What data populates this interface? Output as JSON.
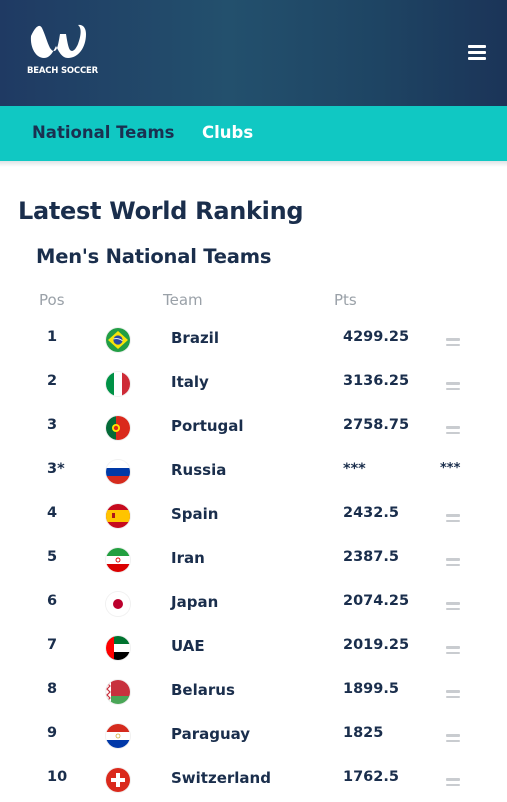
{
  "header": {
    "logo_text": "BEACH SOCCER",
    "menu_icon": "hamburger-menu-icon"
  },
  "tabs": [
    {
      "label": "National Teams",
      "active": true
    },
    {
      "label": "Clubs",
      "active": false
    }
  ],
  "page": {
    "title": "Latest World Ranking",
    "section": "Men's National Teams",
    "columns": {
      "pos": "Pos",
      "team": "Team",
      "pts": "Pts"
    }
  },
  "rankings": [
    {
      "pos": "1",
      "team": "Brazil",
      "pts": "4299.25",
      "flag": "brazil-flag-icon",
      "trend": "unchanged-icon"
    },
    {
      "pos": "2",
      "team": "Italy",
      "pts": "3136.25",
      "flag": "italy-flag-icon",
      "trend": "unchanged-icon"
    },
    {
      "pos": "3",
      "team": "Portugal",
      "pts": "2758.75",
      "flag": "portugal-flag-icon",
      "trend": "unchanged-icon"
    },
    {
      "pos": "3*",
      "team": "Russia",
      "pts": "***",
      "flag": "russia-flag-icon",
      "trend_text": "***"
    },
    {
      "pos": "4",
      "team": "Spain",
      "pts": "2432.5",
      "flag": "spain-flag-icon",
      "trend": "unchanged-icon"
    },
    {
      "pos": "5",
      "team": "Iran",
      "pts": "2387.5",
      "flag": "iran-flag-icon",
      "trend": "unchanged-icon"
    },
    {
      "pos": "6",
      "team": "Japan",
      "pts": "2074.25",
      "flag": "japan-flag-icon",
      "trend": "unchanged-icon"
    },
    {
      "pos": "7",
      "team": "UAE",
      "pts": "2019.25",
      "flag": "uae-flag-icon",
      "trend": "unchanged-icon"
    },
    {
      "pos": "8",
      "team": "Belarus",
      "pts": "1899.5",
      "flag": "belarus-flag-icon",
      "trend": "unchanged-icon"
    },
    {
      "pos": "9",
      "team": "Paraguay",
      "pts": "1825",
      "flag": "paraguay-flag-icon",
      "trend": "unchanged-icon"
    },
    {
      "pos": "10",
      "team": "Switzerland",
      "pts": "1762.5",
      "flag": "switzerland-flag-icon",
      "trend": "unchanged-icon"
    }
  ],
  "colors": {
    "header": "#1f3a63",
    "tabs": "#10c8c3",
    "text": "#1a2e4c",
    "muted": "#9aa1a8"
  }
}
